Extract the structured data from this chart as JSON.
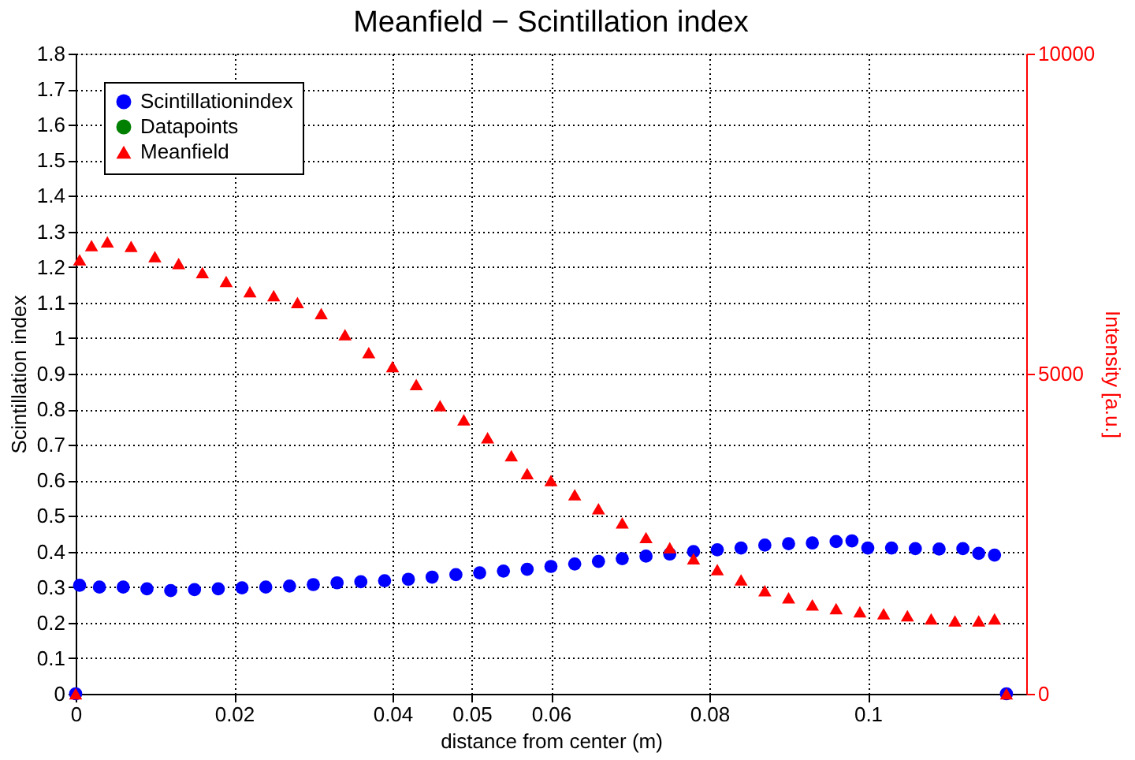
{
  "chart_data": {
    "type": "scatter",
    "title": "Meanfield − Scintillation index",
    "xlabel": "distance from center (m)",
    "ylabel": "Scintillation index",
    "y2label": "Intensity [a.u.]",
    "xlim": [
      0,
      0.12
    ],
    "xticks": [
      0,
      0.02,
      0.04,
      0.05,
      0.06,
      0.08,
      0.1
    ],
    "ylim": [
      0,
      1.8
    ],
    "yticks": [
      0,
      0.1,
      0.2,
      0.3,
      0.4,
      0.5,
      0.6,
      0.7,
      0.8,
      0.9,
      1,
      1.1,
      1.2,
      1.3,
      1.4,
      1.5,
      1.6,
      1.7,
      1.8
    ],
    "y2lim": [
      0,
      10000
    ],
    "y2ticks": [
      0,
      5000,
      10000
    ],
    "grid": true,
    "legend": "top left",
    "series": [
      {
        "name": "Scintillationindex",
        "color": "#0000ff",
        "marker": "circle",
        "x": [
          0,
          0.0005,
          0.003,
          0.006,
          0.009,
          0.012,
          0.015,
          0.018,
          0.021,
          0.024,
          0.027,
          0.03,
          0.033,
          0.036,
          0.039,
          0.042,
          0.045,
          0.048,
          0.051,
          0.054,
          0.057,
          0.06,
          0.063,
          0.066,
          0.069,
          0.072,
          0.075,
          0.078,
          0.081,
          0.084,
          0.087,
          0.09,
          0.093,
          0.096,
          0.098,
          0.1,
          0.103,
          0.106,
          0.109,
          0.112,
          0.114,
          0.116,
          0.1175
        ],
        "values": [
          0,
          0.305,
          0.3,
          0.3,
          0.295,
          0.29,
          0.293,
          0.295,
          0.298,
          0.3,
          0.303,
          0.307,
          0.312,
          0.315,
          0.318,
          0.322,
          0.328,
          0.335,
          0.34,
          0.345,
          0.35,
          0.358,
          0.365,
          0.372,
          0.38,
          0.387,
          0.393,
          0.4,
          0.405,
          0.41,
          0.418,
          0.422,
          0.424,
          0.428,
          0.43,
          0.41,
          0.41,
          0.408,
          0.407,
          0.408,
          0.395,
          0.39,
          0
        ]
      },
      {
        "name": "Datapoints",
        "color": "#008000",
        "marker": "circle"
      },
      {
        "name": "Meanfield",
        "color": "#ff0000",
        "marker": "triangle",
        "axis": "y2",
        "x": [
          0,
          0.0005,
          0.002,
          0.004,
          0.007,
          0.01,
          0.013,
          0.016,
          0.019,
          0.022,
          0.025,
          0.028,
          0.031,
          0.034,
          0.037,
          0.04,
          0.043,
          0.046,
          0.049,
          0.052,
          0.055,
          0.057,
          0.06,
          0.063,
          0.066,
          0.069,
          0.072,
          0.075,
          0.078,
          0.081,
          0.084,
          0.087,
          0.09,
          0.093,
          0.096,
          0.099,
          0.102,
          0.105,
          0.108,
          0.111,
          0.114,
          0.116,
          0.1175
        ],
        "values": [
          0,
          6780,
          7000,
          7060,
          6990,
          6830,
          6720,
          6580,
          6440,
          6280,
          6220,
          6110,
          5940,
          5610,
          5330,
          5110,
          4830,
          4500,
          4280,
          4000,
          3720,
          3440,
          3330,
          3110,
          2890,
          2670,
          2440,
          2280,
          2110,
          1940,
          1780,
          1610,
          1500,
          1390,
          1330,
          1280,
          1250,
          1220,
          1170,
          1140,
          1140,
          1170,
          0
        ]
      }
    ]
  }
}
